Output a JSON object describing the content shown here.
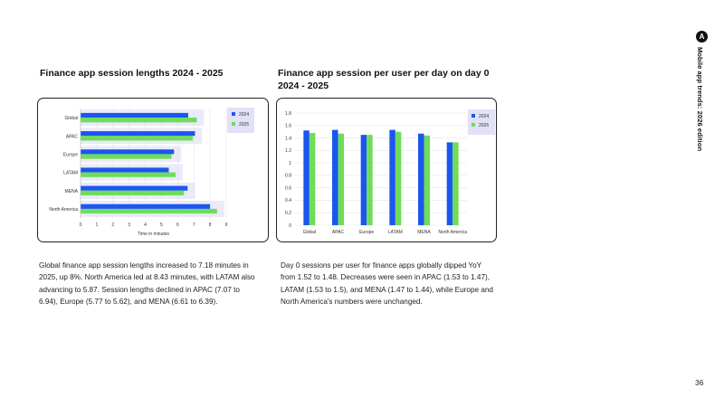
{
  "headings": {
    "left": "Finance app session lengths 2024 - 2025",
    "right": "Finance app session per user per day on day 0 2024 - 2025"
  },
  "paragraphs": {
    "left": "Global finance app session lengths increased to 7.18 minutes in 2025, up 8%. North America led at 8.43 minutes, with LATAM also advancing to 5.87. Session lengths declined in APAC (7.07 to 6.94), Europe (5.77 to 5.62), and MENA (6.61 to 6.39).",
    "right": "Day 0 sessions per user for finance apps globally dipped YoY from 1.52 to 1.48. Decreases were seen in APAC (1.53 to 1.47), LATAM (1.53 to 1.5), and MENA (1.47 to 1.44), while Europe and North America's numbers were unchanged."
  },
  "sidebar": {
    "logo_glyph": "A",
    "title": "Mobile app trends: 2026 edition"
  },
  "page_number": "36",
  "colors": {
    "series_2024": "#1a56f0",
    "series_2025": "#6fdc5a",
    "highlight": "#d9d9f5"
  },
  "chart_data": [
    {
      "type": "bar",
      "orientation": "horizontal",
      "categories": [
        "Global",
        "APAC",
        "Europe",
        "LATAM",
        "MENA",
        "North America"
      ],
      "series": [
        {
          "name": "2024",
          "values": [
            6.65,
            7.07,
            5.77,
            5.45,
            6.61,
            8.0
          ]
        },
        {
          "name": "2025",
          "values": [
            7.18,
            6.94,
            5.62,
            5.87,
            6.39,
            8.43
          ]
        }
      ],
      "xlabel": "Time in minutes",
      "ylabel": "",
      "xlim": [
        0,
        9
      ],
      "xticks": [
        "0",
        "1",
        "2",
        "3",
        "4",
        "5",
        "6",
        "7",
        "8",
        "9"
      ],
      "legend": "top-right",
      "grid": true
    },
    {
      "type": "bar",
      "categories": [
        "Global",
        "APAC",
        "Europe",
        "LATAM",
        "MENA",
        "North America"
      ],
      "series": [
        {
          "name": "2024",
          "values": [
            1.52,
            1.53,
            1.45,
            1.53,
            1.47,
            1.33
          ]
        },
        {
          "name": "2025",
          "values": [
            1.48,
            1.47,
            1.45,
            1.5,
            1.44,
            1.33
          ]
        }
      ],
      "xlabel": "",
      "ylabel": "",
      "ylim": [
        0,
        1.8
      ],
      "yticks": [
        "0",
        "0.2",
        "0.4",
        "0.6",
        "0.8",
        "1",
        "1.2",
        "1.4",
        "1.6",
        "1.8"
      ],
      "legend": "top-right",
      "grid": true
    }
  ]
}
